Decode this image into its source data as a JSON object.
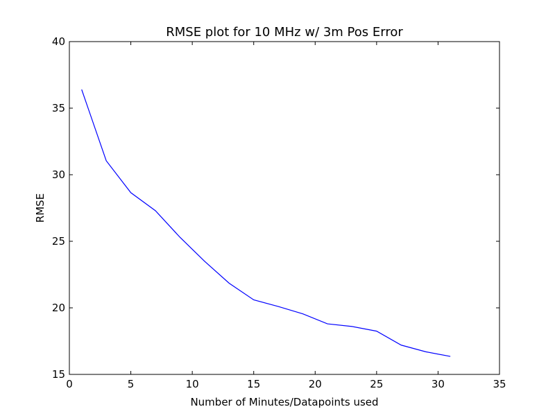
{
  "chart_data": {
    "type": "line",
    "title": "RMSE plot for 10 MHz w/ 3m Pos Error",
    "xlabel": "Number of Minutes/Datapoints used",
    "ylabel": "RMSE",
    "xlim": [
      0,
      35
    ],
    "ylim": [
      15,
      40
    ],
    "xticks": [
      0,
      5,
      10,
      15,
      20,
      25,
      30,
      35
    ],
    "yticks": [
      15,
      20,
      25,
      30,
      35,
      40
    ],
    "grid": false,
    "series": [
      {
        "color": "#0000ff",
        "x": [
          1,
          3,
          5,
          7,
          9,
          11,
          13,
          15,
          17,
          19,
          21,
          23,
          25,
          27,
          29,
          31
        ],
        "y": [
          36.4,
          31.05,
          28.65,
          27.3,
          25.3,
          23.5,
          21.85,
          20.6,
          20.1,
          19.55,
          18.8,
          18.6,
          18.25,
          17.2,
          16.7,
          16.35
        ]
      }
    ]
  }
}
